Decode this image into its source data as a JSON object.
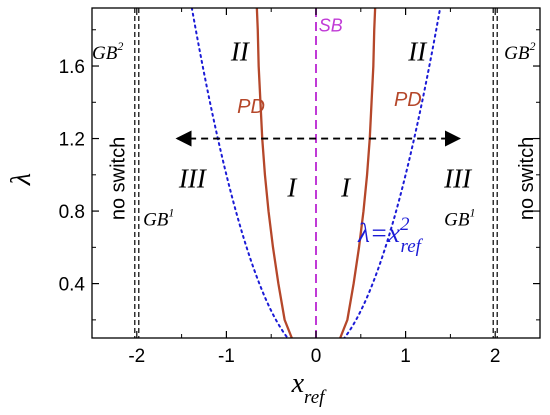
{
  "chart_data": {
    "type": "line",
    "xlabel": "x",
    "xlabel_sub": "ref",
    "ylabel": "λ",
    "xlim": [
      -2.5,
      2.5
    ],
    "ylim": [
      0.1,
      1.92
    ],
    "x_ticks": [
      {
        "value": -2,
        "label": "-2"
      },
      {
        "value": -1,
        "label": "-1"
      },
      {
        "value": 0,
        "label": "0"
      },
      {
        "value": 1,
        "label": "1"
      },
      {
        "value": 2,
        "label": "2"
      }
    ],
    "y_ticks": [
      {
        "value": 0.4,
        "label": "0.4"
      },
      {
        "value": 0.8,
        "label": "0.8"
      },
      {
        "value": 1.2,
        "label": "1.2"
      },
      {
        "value": 1.6,
        "label": "1.6"
      }
    ],
    "grid": false,
    "series": [
      {
        "name": "PD",
        "color": "#b5472a",
        "style": "solid",
        "branches": [
          [
            [
              -0.27,
              0.1
            ],
            [
              -0.35,
              0.2
            ],
            [
              -0.42,
              0.4
            ],
            [
              -0.48,
              0.6
            ],
            [
              -0.53,
              0.8
            ],
            [
              -0.57,
              1.0
            ],
            [
              -0.6,
              1.2
            ],
            [
              -0.62,
              1.4
            ],
            [
              -0.64,
              1.6
            ],
            [
              -0.65,
              1.8
            ],
            [
              -0.66,
              1.92
            ]
          ],
          [
            [
              0.27,
              0.1
            ],
            [
              0.35,
              0.2
            ],
            [
              0.42,
              0.4
            ],
            [
              0.48,
              0.6
            ],
            [
              0.53,
              0.8
            ],
            [
              0.57,
              1.0
            ],
            [
              0.6,
              1.2
            ],
            [
              0.62,
              1.4
            ],
            [
              0.64,
              1.6
            ],
            [
              0.65,
              1.8
            ],
            [
              0.66,
              1.92
            ]
          ]
        ]
      },
      {
        "name": "λ=x²ref",
        "color": "#1b1bd6",
        "style": "dotted",
        "function": "x^2",
        "x_range": [
          -1.386,
          1.386
        ]
      },
      {
        "name": "SB",
        "color": "#c03ad6",
        "style": "dashed",
        "vertical_at": 0
      },
      {
        "name": "GB boundary left",
        "color": "#000000",
        "style": "dashed-double",
        "vertical_at": -2
      },
      {
        "name": "GB boundary right",
        "color": "#000000",
        "style": "dashed-double",
        "vertical_at": 2
      }
    ],
    "arrow": {
      "y": 1.2,
      "x_from": -1.55,
      "x_to": 1.6,
      "style": "dashed",
      "color": "#000000"
    },
    "annotations": [
      {
        "text": "II",
        "x": -0.95,
        "y": 1.63,
        "kind": "region"
      },
      {
        "text": "II",
        "x": 1.03,
        "y": 1.63,
        "kind": "region"
      },
      {
        "text": "I",
        "x": -0.32,
        "y": 0.88,
        "kind": "region"
      },
      {
        "text": "I",
        "x": 0.28,
        "y": 0.88,
        "kind": "region"
      },
      {
        "text": "III",
        "x": -1.53,
        "y": 0.93,
        "kind": "region"
      },
      {
        "text": "III",
        "x": 1.43,
        "y": 0.93,
        "kind": "region"
      },
      {
        "text": "PD",
        "x": -0.88,
        "y": 1.34,
        "kind": "pd"
      },
      {
        "text": "PD",
        "x": 0.87,
        "y": 1.38,
        "kind": "pd"
      },
      {
        "text": "SB",
        "x": 0.03,
        "y": 1.79,
        "kind": "sb"
      },
      {
        "text": "GB",
        "sup": "2",
        "x": -2.5,
        "y": 1.64,
        "kind": "gb"
      },
      {
        "text": "GB",
        "sup": "2",
        "x": 2.1,
        "y": 1.64,
        "kind": "gb"
      },
      {
        "text": "GB",
        "sup": "1",
        "x": -1.93,
        "y": 0.72,
        "kind": "gb"
      },
      {
        "text": "GB",
        "sup": "1",
        "x": 1.43,
        "y": 0.72,
        "kind": "gb"
      },
      {
        "text": "no switch",
        "x": -2.14,
        "y": 0.98,
        "kind": "noswitch"
      },
      {
        "text": "no switch",
        "x": 2.42,
        "y": 0.98,
        "kind": "noswitch"
      }
    ],
    "formula": {
      "text": "λ=x",
      "sup": "2",
      "sub": "ref",
      "x": 0.47,
      "y": 0.63
    }
  }
}
